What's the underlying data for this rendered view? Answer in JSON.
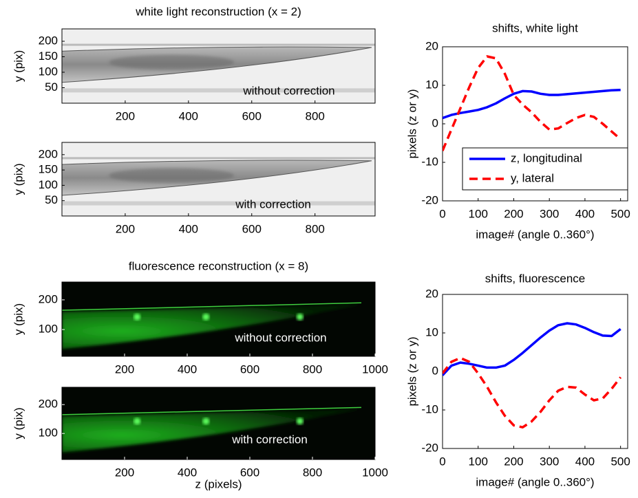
{
  "chart_data": [
    {
      "type": "image",
      "title": "white light reconstruction (x = 2)",
      "ylabel": "y (pix)",
      "annotation": "without correction",
      "colormap": "gray",
      "xlim": [
        0,
        990
      ],
      "xticks": [
        200,
        400,
        600,
        800
      ],
      "ylim": [
        0,
        240
      ],
      "yticks": [
        50,
        100,
        150,
        200
      ]
    },
    {
      "type": "image",
      "ylabel": "y (pix)",
      "annotation": "with correction",
      "colormap": "gray",
      "xlim": [
        0,
        990
      ],
      "xticks": [
        200,
        400,
        600,
        800
      ],
      "ylim": [
        0,
        240
      ],
      "yticks": [
        50,
        100,
        150,
        200
      ]
    },
    {
      "type": "image",
      "title": "fluorescence reconstruction (x = 8)",
      "ylabel": "y (pix)",
      "annotation": "without correction",
      "colormap": "green",
      "xlim": [
        0,
        1000
      ],
      "xticks": [
        200,
        400,
        600,
        800,
        1000
      ],
      "ylim": [
        10,
        260
      ],
      "yticks": [
        100,
        200
      ]
    },
    {
      "type": "image",
      "ylabel": "y (pix)",
      "xlabel": "z (pixels)",
      "annotation": "with correction",
      "colormap": "green",
      "xlim": [
        0,
        1000
      ],
      "xticks": [
        200,
        400,
        600,
        800,
        1000
      ],
      "ylim": [
        10,
        260
      ],
      "yticks": [
        100,
        200
      ]
    },
    {
      "type": "line",
      "title": "shifts, white light",
      "xlabel": "image# (angle 0..360°)",
      "ylabel": "pixels (z or y)",
      "legend": "lower right",
      "xlim": [
        0,
        520
      ],
      "xticks": [
        0,
        100,
        200,
        300,
        400,
        500
      ],
      "ylim": [
        -20,
        20
      ],
      "yticks": [
        -20,
        -10,
        0,
        10,
        20
      ],
      "x": [
        0,
        25,
        50,
        75,
        100,
        125,
        150,
        175,
        200,
        225,
        250,
        275,
        300,
        325,
        350,
        375,
        400,
        425,
        450,
        475,
        500
      ],
      "series": [
        {
          "name": "z, longitudinal",
          "color": "#0000ff",
          "dash": "solid",
          "values": [
            1.5,
            2.3,
            2.8,
            3.2,
            3.6,
            4.3,
            5.3,
            6.6,
            7.8,
            8.5,
            8.4,
            7.8,
            7.5,
            7.5,
            7.7,
            7.9,
            8.1,
            8.3,
            8.5,
            8.7,
            8.8
          ]
        },
        {
          "name": "y, lateral",
          "color": "#ff0000",
          "dash": "dashed",
          "values": [
            -7,
            -1.5,
            4,
            9.5,
            14.5,
            17.5,
            17,
            13,
            7.5,
            5,
            3,
            0.5,
            -1.5,
            -1.2,
            0.2,
            1.5,
            2.3,
            1.8,
            0,
            -2,
            -4
          ]
        }
      ]
    },
    {
      "type": "line",
      "title": "shifts, fluorescence",
      "xlabel": "image# (angle 0..360°)",
      "ylabel": "pixels (z or y)",
      "xlim": [
        0,
        520
      ],
      "xticks": [
        0,
        100,
        200,
        300,
        400,
        500
      ],
      "ylim": [
        -20,
        20
      ],
      "yticks": [
        -20,
        -10,
        0,
        10,
        20
      ],
      "x": [
        0,
        25,
        50,
        75,
        100,
        125,
        150,
        175,
        200,
        225,
        250,
        275,
        300,
        325,
        350,
        375,
        400,
        425,
        450,
        475,
        500
      ],
      "series": [
        {
          "name": "z, longitudinal",
          "color": "#0000ff",
          "dash": "solid",
          "values": [
            -1,
            1.5,
            2.3,
            2,
            1.5,
            1,
            1,
            1.5,
            3,
            4.8,
            6.8,
            8.8,
            10.6,
            12,
            12.5,
            12.2,
            11.3,
            10.2,
            9.3,
            9.2,
            11
          ]
        },
        {
          "name": "y, lateral",
          "color": "#ff0000",
          "dash": "dashed",
          "values": [
            -0.5,
            2.5,
            3.5,
            2.5,
            -0.5,
            -4,
            -8,
            -11.5,
            -14,
            -14.5,
            -13,
            -10.5,
            -7.5,
            -5,
            -4,
            -4.2,
            -6,
            -7.5,
            -7,
            -4.5,
            -1.5
          ]
        }
      ]
    }
  ]
}
